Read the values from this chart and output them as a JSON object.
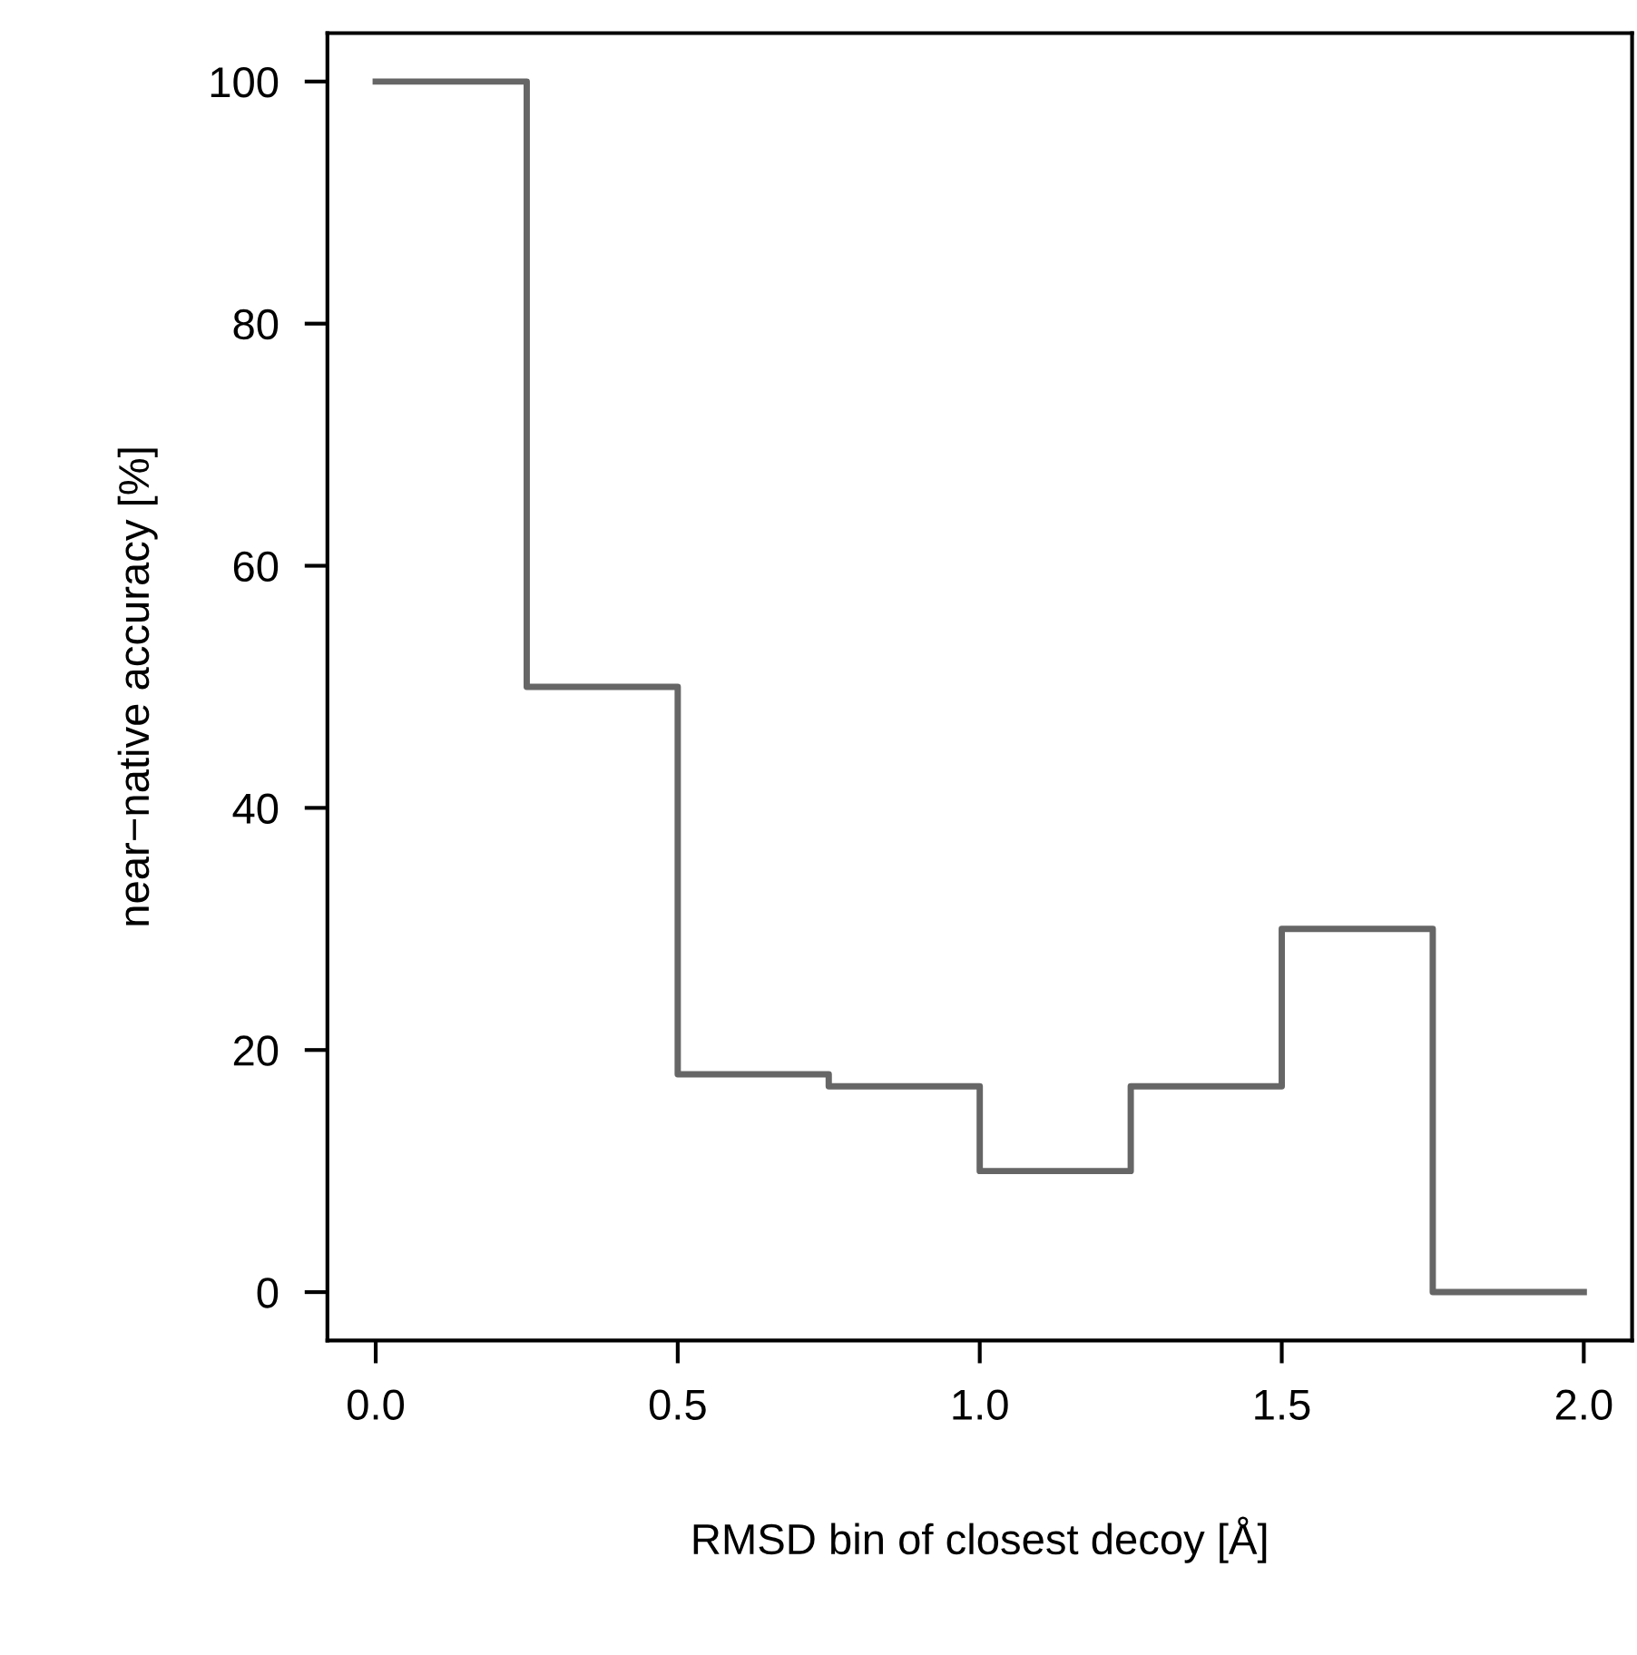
{
  "chart_data": {
    "type": "step",
    "xlabel": "RMSD bin of closest decoy [Å]",
    "ylabel": "near−native accuracy [%]",
    "x": [
      0,
      0.25,
      0.5,
      0.75,
      1.0,
      1.25,
      1.5,
      1.75,
      2.0
    ],
    "values": [
      100,
      50,
      18,
      17,
      10,
      17,
      30,
      0,
      0
    ],
    "color": "#666666",
    "xlim": [
      -0.08,
      2.08
    ],
    "ylim": [
      -4,
      104
    ],
    "xticks": [
      {
        "value": 0,
        "label": "0.0"
      },
      0.5,
      {
        "value": 1,
        "label": "1.0"
      },
      1.5,
      {
        "value": 2,
        "label": "2.0"
      }
    ],
    "yticks": [
      0,
      20,
      40,
      60,
      80,
      100
    ],
    "grid": false,
    "legend": false
  }
}
